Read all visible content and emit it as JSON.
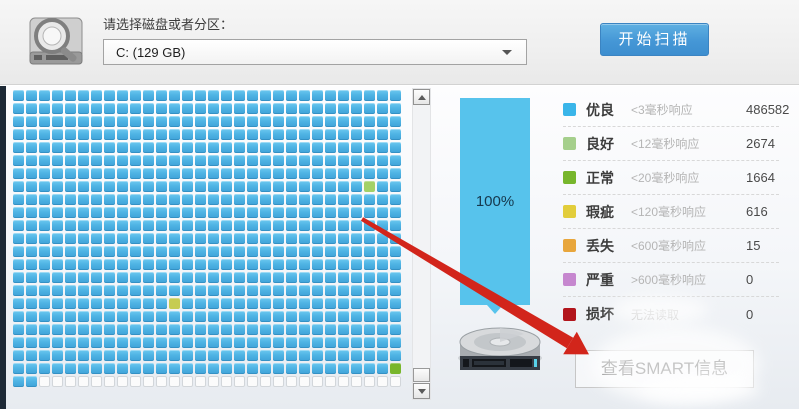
{
  "header": {
    "label": "请选择磁盘或者分区：",
    "disk_select": {
      "value": "C: (129 GB)"
    },
    "scan_button": "开始扫描"
  },
  "progress": {
    "percent": "100%"
  },
  "legend": {
    "rows": [
      {
        "color": "#3ab5e9",
        "label": "优良",
        "response": "<3毫秒响应",
        "count": "486582"
      },
      {
        "color": "#a5cf8c",
        "label": "良好",
        "response": "<12毫秒响应",
        "count": "2674"
      },
      {
        "color": "#77b62c",
        "label": "正常",
        "response": "<20毫秒响应",
        "count": "1664"
      },
      {
        "color": "#e2cd3b",
        "label": "瑕疵",
        "response": "<120毫秒响应",
        "count": "616"
      },
      {
        "color": "#e8a63c",
        "label": "丢失",
        "response": "<600毫秒响应",
        "count": "15"
      },
      {
        "color": "#c687cf",
        "label": "严重",
        "response": ">600毫秒响应",
        "count": "0"
      },
      {
        "color": "#b2151c",
        "label": "损坏",
        "response": "无法读取",
        "count": "0"
      }
    ]
  },
  "smart_button": "查看SMART信息",
  "grid": {
    "cols": 30,
    "rows": 23,
    "block_color_default": "#4fb4e4",
    "special_cells": [
      {
        "row": 7,
        "col": 27,
        "color": "#a3d168"
      },
      {
        "row": 16,
        "col": 12,
        "color": "#c6cc52"
      },
      {
        "row": 21,
        "col": 29,
        "color": "#78b62c"
      }
    ],
    "last_row_scanned_cols": 2
  },
  "colors": {
    "accent_blue": "#4597d6",
    "progress_blue": "#57c3ec",
    "arrow_red": "#d2251b"
  }
}
